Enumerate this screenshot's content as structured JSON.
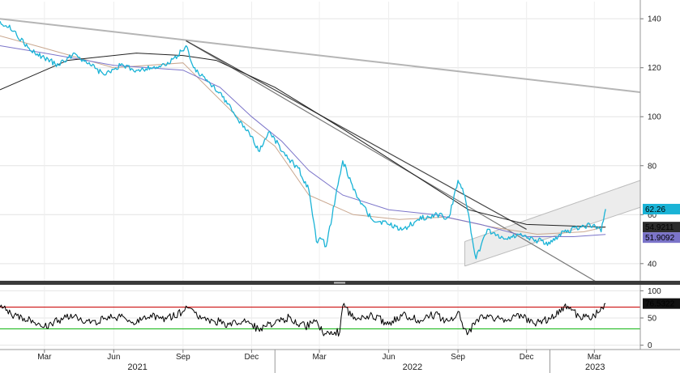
{
  "chart_data": [
    {
      "type": "line",
      "panel": "price",
      "yticks": [
        40,
        60,
        80,
        100,
        120,
        140
      ],
      "ylim": [
        33,
        147
      ],
      "xlim": [
        "2021-01-01",
        "2023-05-01"
      ],
      "grid": true,
      "series": [
        {
          "color": "#1ab3d6",
          "x": [
            "2021-01-01",
            "2021-01-20",
            "2021-02-10",
            "2021-03-01",
            "2021-03-20",
            "2021-04-10",
            "2021-05-01",
            "2021-05-20",
            "2021-06-10",
            "2021-07-01",
            "2021-07-20",
            "2021-08-10",
            "2021-08-25",
            "2021-09-05",
            "2021-09-15",
            "2021-10-01",
            "2021-10-20",
            "2021-11-10",
            "2021-12-01",
            "2021-12-10",
            "2021-12-25",
            "2022-01-15",
            "2022-02-01",
            "2022-02-15",
            "2022-02-25",
            "2022-03-05",
            "2022-03-10",
            "2022-04-01",
            "2022-04-20",
            "2022-05-10",
            "2022-06-01",
            "2022-06-20",
            "2022-07-10",
            "2022-08-01",
            "2022-08-20",
            "2022-09-01",
            "2022-09-10",
            "2022-09-25",
            "2022-10-10",
            "2022-11-01",
            "2022-11-20",
            "2022-12-10",
            "2023-01-01",
            "2023-01-20",
            "2023-02-10",
            "2023-03-01",
            "2023-03-10",
            "2023-03-16"
          ],
          "values": [
            139,
            135,
            127,
            124,
            121,
            126,
            121,
            117,
            121,
            119,
            120,
            121,
            125,
            129,
            120,
            115,
            110,
            100,
            92,
            86,
            94,
            84,
            79,
            70,
            49,
            50,
            47,
            82,
            67,
            58,
            56,
            54,
            58,
            60,
            59,
            74,
            68,
            42,
            54,
            50,
            52,
            50,
            48,
            53,
            55,
            56,
            53,
            62.26
          ]
        },
        {
          "color": "#222222",
          "x": [
            "2021-01-01",
            "2021-04-01",
            "2021-07-01",
            "2021-09-01",
            "2021-10-15",
            "2022-01-01",
            "2022-04-01",
            "2022-07-01",
            "2022-09-15",
            "2022-12-01",
            "2023-03-16"
          ],
          "values": [
            111,
            123,
            126,
            125,
            123,
            112,
            95,
            77,
            62,
            56,
            54.9211
          ]
        },
        {
          "color": "#7b74c9",
          "x": [
            "2021-01-01",
            "2021-03-01",
            "2021-06-01",
            "2021-09-01",
            "2021-10-20",
            "2021-12-01",
            "2022-01-10",
            "2022-02-15",
            "2022-04-01",
            "2022-06-01",
            "2022-08-01",
            "2022-10-01",
            "2022-12-01",
            "2023-02-01",
            "2023-03-16"
          ],
          "values": [
            129,
            126,
            121,
            119,
            112,
            100,
            90,
            78,
            68,
            62,
            60,
            56,
            51,
            51,
            51.9092
          ]
        },
        {
          "color": "#c9a78f",
          "x": [
            "2021-01-01",
            "2021-03-01",
            "2021-06-01",
            "2021-09-01",
            "2021-10-10",
            "2021-11-15",
            "2022-01-01",
            "2022-02-15",
            "2022-04-15",
            "2022-06-15",
            "2022-08-15",
            "2022-10-15",
            "2022-12-15",
            "2023-02-15",
            "2023-03-16"
          ],
          "values": [
            133,
            128,
            120,
            122,
            110,
            99,
            88,
            68,
            60,
            58,
            59,
            55,
            52,
            53,
            55
          ]
        }
      ],
      "trendlines": [
        {
          "color": "#b5b5b5",
          "x": [
            "2021-01-01",
            "2023-05-01"
          ],
          "values": [
            140,
            110
          ]
        },
        {
          "color": "#777777",
          "x": [
            "2021-09-05",
            "2023-05-01"
          ],
          "values": [
            131,
            22
          ]
        },
        {
          "color": "#444444",
          "x": [
            "2021-09-05",
            "2022-12-01"
          ],
          "values": [
            131,
            54
          ]
        }
      ],
      "channel": {
        "fill": "#ececec",
        "edge": "#bbbbbb",
        "x": [
          "2022-09-10",
          "2023-05-01"
        ],
        "upper": [
          49,
          74
        ],
        "lower": [
          39,
          63
        ]
      },
      "last_value_tags": [
        {
          "text": "62.26",
          "value": 62.26,
          "bg": "#1ab3d6",
          "fg": "#000000"
        },
        {
          "text": "54.9211",
          "value": 54.9211,
          "bg": "#2b2b2b",
          "fg": "#ffffff"
        },
        {
          "text": "51.9092",
          "value": 51.9092,
          "bg": "#7b74c9",
          "fg": "#ffffff"
        }
      ]
    },
    {
      "type": "line",
      "panel": "indicator",
      "yticks": [
        0,
        50,
        100
      ],
      "ylim": [
        -8,
        108
      ],
      "xlim": [
        "2021-01-01",
        "2023-05-01"
      ],
      "grid": true,
      "reference_lines": [
        {
          "value": 70,
          "color": "#cc1111"
        },
        {
          "value": 30,
          "color": "#22bb22"
        }
      ],
      "series": [
        {
          "color": "#000000",
          "x": [
            "2021-01-01",
            "2021-01-20",
            "2021-02-10",
            "2021-03-01",
            "2021-03-20",
            "2021-04-10",
            "2021-05-01",
            "2021-05-20",
            "2021-06-10",
            "2021-07-01",
            "2021-07-20",
            "2021-08-10",
            "2021-09-01",
            "2021-09-05",
            "2021-09-20",
            "2021-10-10",
            "2021-11-01",
            "2021-11-20",
            "2021-12-10",
            "2022-01-01",
            "2022-01-20",
            "2022-02-10",
            "2022-02-25",
            "2022-03-05",
            "2022-03-28",
            "2022-04-01",
            "2022-04-20",
            "2022-05-10",
            "2022-06-01",
            "2022-06-20",
            "2022-07-10",
            "2022-08-01",
            "2022-08-20",
            "2022-09-01",
            "2022-09-08",
            "2022-09-15",
            "2022-09-25",
            "2022-10-10",
            "2022-11-01",
            "2022-11-20",
            "2022-12-10",
            "2023-01-01",
            "2023-01-20",
            "2023-02-10",
            "2023-03-01",
            "2023-03-10",
            "2023-03-16"
          ],
          "values": [
            70,
            55,
            48,
            34,
            46,
            54,
            40,
            50,
            52,
            40,
            56,
            48,
            62,
            72,
            52,
            46,
            38,
            44,
            30,
            40,
            52,
            34,
            46,
            24,
            24,
            72,
            48,
            56,
            38,
            58,
            46,
            56,
            44,
            62,
            30,
            24,
            46,
            56,
            42,
            58,
            40,
            48,
            72,
            52,
            54,
            70,
            76.5322
          ]
        }
      ],
      "last_value_tags": [
        {
          "text": "76.5322",
          "value": 76.5322,
          "bg": "#111111",
          "fg": "#ffffff"
        }
      ]
    }
  ],
  "x_axis": {
    "month_ticks": [
      {
        "date": "2021-03-01",
        "label": "Mar"
      },
      {
        "date": "2021-06-01",
        "label": "Jun"
      },
      {
        "date": "2021-09-01",
        "label": "Sep"
      },
      {
        "date": "2021-12-01",
        "label": "Dec"
      },
      {
        "date": "2022-03-01",
        "label": "Mar"
      },
      {
        "date": "2022-06-01",
        "label": "Jun"
      },
      {
        "date": "2022-09-01",
        "label": "Sep"
      },
      {
        "date": "2022-12-01",
        "label": "Dec"
      },
      {
        "date": "2023-03-01",
        "label": "Mar"
      }
    ],
    "year_ticks": [
      {
        "date": "2021-01-01",
        "label": "2021"
      },
      {
        "date": "2022-01-01",
        "label": "2022"
      },
      {
        "date": "2023-01-01",
        "label": "2023"
      }
    ]
  }
}
